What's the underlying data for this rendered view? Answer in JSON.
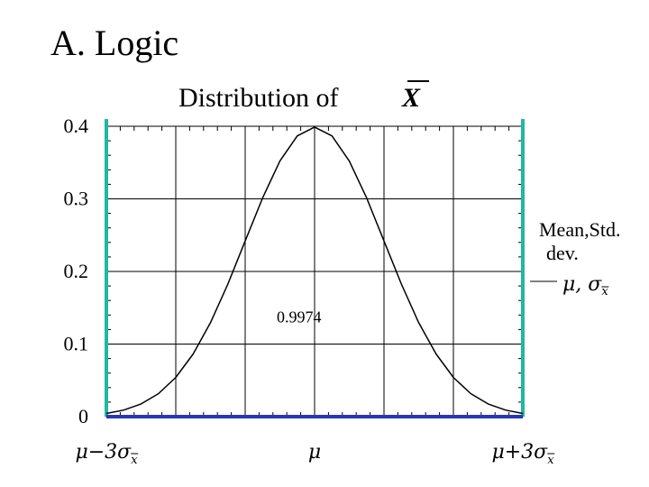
{
  "slide": {
    "title": "A. Logic"
  },
  "chart_data": {
    "type": "line",
    "title": "Distribution of",
    "title_symbol": "X",
    "title_symbol_bar": true,
    "xlabel": "",
    "ylabel": "",
    "x_tick_labels": [
      {
        "at": -3,
        "base": "μ−3σ",
        "sub": "x"
      },
      {
        "at": 0,
        "base": "μ",
        "sub": ""
      },
      {
        "at": 3,
        "base": "μ+3σ",
        "sub": "x"
      }
    ],
    "yticks": [
      0,
      0.1,
      0.2,
      0.3,
      0.4
    ],
    "y_tick_labels": [
      "0",
      "0.1",
      "0.2",
      "0.3",
      "0.4"
    ],
    "xlim": [
      -3,
      3
    ],
    "ylim": [
      0,
      0.4
    ],
    "grid": true,
    "series": [
      {
        "x": [
          -3,
          -2.75,
          -2.5,
          -2.25,
          -2,
          -1.75,
          -1.5,
          -1.25,
          -1,
          -0.75,
          -0.5,
          -0.25,
          0,
          0.25,
          0.5,
          0.75,
          1,
          1.25,
          1.5,
          1.75,
          2,
          2.25,
          2.5,
          2.75,
          3
        ],
        "values": [
          0.0044,
          0.0091,
          0.0175,
          0.0317,
          0.054,
          0.0863,
          0.1295,
          0.1826,
          0.242,
          0.3011,
          0.3521,
          0.3867,
          0.3989,
          0.3867,
          0.3521,
          0.3011,
          0.242,
          0.1826,
          0.1295,
          0.0863,
          0.054,
          0.0317,
          0.0175,
          0.0091,
          0.0044
        ],
        "color": "#000000"
      }
    ],
    "bounds": {
      "x": [
        -3,
        3
      ],
      "color": "#20b8a0"
    },
    "baseline": {
      "from": -3,
      "to": 3,
      "color": "#2838b8"
    },
    "annotation": {
      "text": "0.9974",
      "x": 0,
      "y": 0.12
    },
    "legend": {
      "label_lines": [
        "Mean,Std.",
        "dev."
      ],
      "symbol": {
        "mu": "μ",
        "sep": ",",
        "sigma": "σ",
        "sub": "x"
      },
      "position": "right"
    }
  }
}
